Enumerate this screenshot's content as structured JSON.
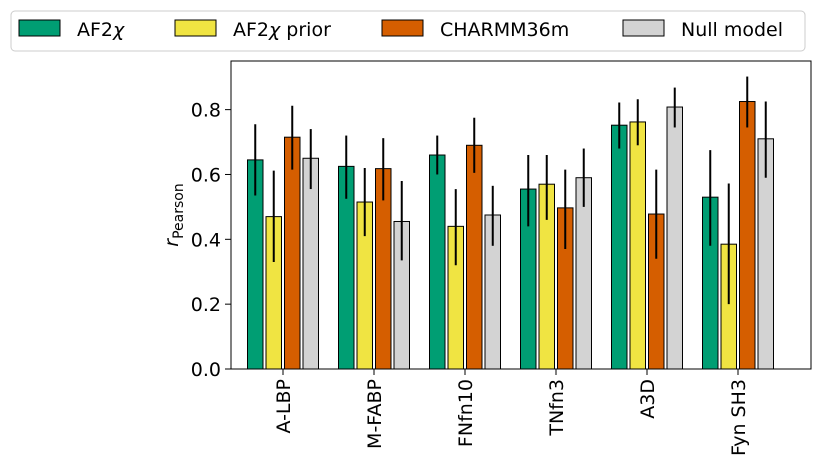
{
  "chart_data": {
    "type": "bar",
    "title": "",
    "xlabel": "",
    "ylabel": {
      "main": "r",
      "sub": "Pearson"
    },
    "ylim": [
      0,
      0.95
    ],
    "yticks": [
      "0.0",
      "0.2",
      "0.4",
      "0.6",
      "0.8"
    ],
    "ytick_values": [
      0.0,
      0.2,
      0.4,
      0.6,
      0.8
    ],
    "categories": [
      "A-LBP",
      "M-FABP",
      "FNfn10",
      "TNfn3",
      "A3D",
      "Fyn SH3"
    ],
    "legend": {
      "placement": "top",
      "columns": 4
    },
    "series": [
      {
        "name": "AF2χ",
        "name_base": "AF2",
        "name_greek": "χ",
        "name_suffix": "",
        "color": "#009e73",
        "values": [
          0.645,
          0.625,
          0.66,
          0.555,
          0.752,
          0.53
        ],
        "err_low": [
          0.535,
          0.525,
          0.6,
          0.44,
          0.68,
          0.38
        ],
        "err_high": [
          0.755,
          0.72,
          0.72,
          0.66,
          0.822,
          0.675
        ]
      },
      {
        "name": "AF2χ prior",
        "name_base": "AF2",
        "name_greek": "χ",
        "name_suffix": " prior",
        "color": "#f0e442",
        "values": [
          0.47,
          0.515,
          0.44,
          0.57,
          0.762,
          0.385
        ],
        "err_low": [
          0.33,
          0.41,
          0.32,
          0.46,
          0.69,
          0.2
        ],
        "err_high": [
          0.612,
          0.62,
          0.555,
          0.66,
          0.832,
          0.572
        ]
      },
      {
        "name": "CHARMM36m",
        "name_base": "CHARMM36m",
        "name_greek": "",
        "name_suffix": "",
        "color": "#d55e00",
        "values": [
          0.715,
          0.618,
          0.69,
          0.497,
          0.478,
          0.825
        ],
        "err_low": [
          0.615,
          0.52,
          0.605,
          0.37,
          0.34,
          0.745
        ],
        "err_high": [
          0.812,
          0.712,
          0.775,
          0.615,
          0.615,
          0.902
        ]
      },
      {
        "name": "Null model",
        "name_base": "Null model",
        "name_greek": "",
        "name_suffix": "",
        "color": "#d3d3d3",
        "values": [
          0.65,
          0.455,
          0.475,
          0.59,
          0.808,
          0.71
        ],
        "err_low": [
          0.555,
          0.335,
          0.38,
          0.5,
          0.745,
          0.59
        ],
        "err_high": [
          0.74,
          0.58,
          0.565,
          0.68,
          0.868,
          0.825
        ]
      }
    ]
  }
}
